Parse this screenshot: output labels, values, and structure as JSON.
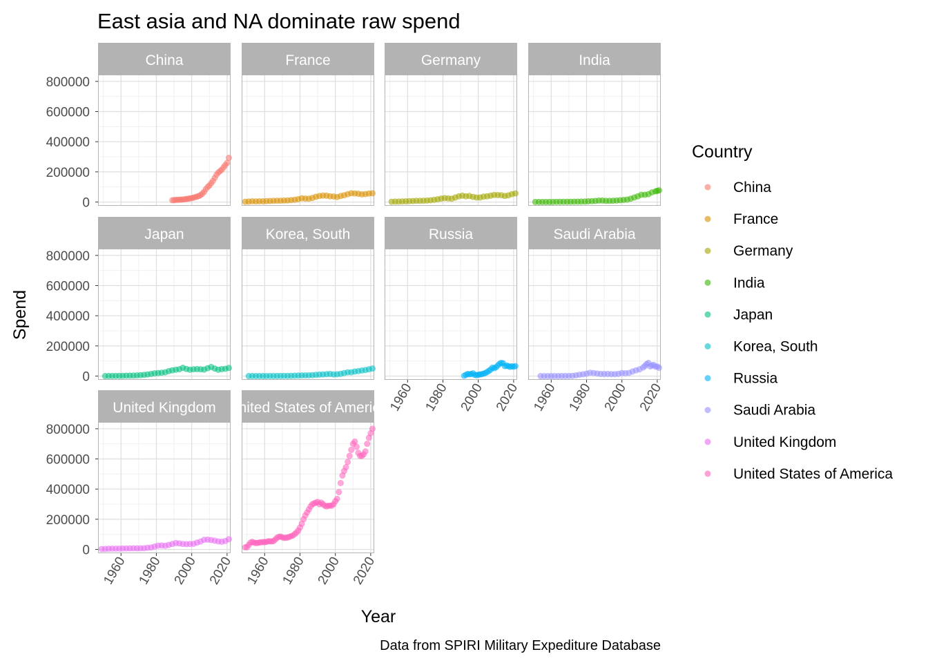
{
  "chart_data": {
    "type": "scatter",
    "title": "East asia and NA dominate raw spend",
    "xlabel": "Year",
    "ylabel": "Spend",
    "caption": "Data from SPIRI Military Expediture Database",
    "legend_title": "Country",
    "legend_position": "right",
    "grid": true,
    "facet": "wrap",
    "facet_columns": 4,
    "xlim": [
      1947,
      2022
    ],
    "ylim": [
      -25000,
      845000
    ],
    "x_ticks": [
      1960,
      1980,
      2000,
      2020
    ],
    "x_tick_labels": [
      "1960",
      "1980",
      "2000",
      "2020"
    ],
    "y_ticks": [
      0,
      200000,
      400000,
      600000,
      800000
    ],
    "y_tick_labels": [
      "0",
      "200000",
      "400000",
      "600000",
      "800000"
    ],
    "series": [
      {
        "name": "China",
        "strip_label": "China",
        "color": "#F8766D",
        "x": [
          1989,
          1990,
          1991,
          1992,
          1993,
          1994,
          1995,
          1996,
          1997,
          1998,
          1999,
          2000,
          2001,
          2002,
          2003,
          2004,
          2005,
          2006,
          2007,
          2008,
          2009,
          2010,
          2011,
          2012,
          2013,
          2014,
          2015,
          2016,
          2017,
          2018,
          2019,
          2020,
          2021
        ],
        "y": [
          12000,
          13000,
          14000,
          15000,
          15000,
          16000,
          17000,
          18000,
          20000,
          22000,
          24000,
          26000,
          29000,
          33000,
          36000,
          40000,
          46000,
          55000,
          68000,
          85000,
          100000,
          110000,
          125000,
          140000,
          160000,
          180000,
          195000,
          205000,
          215000,
          230000,
          245000,
          260000,
          293000
        ]
      },
      {
        "name": "France",
        "strip_label": "France",
        "color": "#D89000",
        "x": [
          1949,
          1951,
          1953,
          1955,
          1957,
          1959,
          1961,
          1963,
          1965,
          1967,
          1969,
          1971,
          1973,
          1975,
          1977,
          1979,
          1981,
          1983,
          1985,
          1987,
          1989,
          1991,
          1993,
          1995,
          1997,
          1999,
          2001,
          2003,
          2005,
          2007,
          2009,
          2011,
          2013,
          2015,
          2017,
          2019,
          2021
        ],
        "y": [
          2000,
          3000,
          5000,
          4000,
          5000,
          5000,
          6000,
          7000,
          8000,
          9000,
          9000,
          10000,
          11000,
          13000,
          15000,
          19000,
          25000,
          23000,
          22000,
          27000,
          35000,
          40000,
          43000,
          42000,
          38000,
          37000,
          33000,
          40000,
          45000,
          52000,
          58000,
          57000,
          55000,
          51000,
          53000,
          56000,
          58000
        ]
      },
      {
        "name": "Germany",
        "strip_label": "Germany",
        "color": "#A3A500",
        "x": [
          1951,
          1953,
          1955,
          1957,
          1959,
          1961,
          1963,
          1965,
          1967,
          1969,
          1971,
          1973,
          1975,
          1977,
          1979,
          1981,
          1983,
          1985,
          1987,
          1989,
          1991,
          1993,
          1995,
          1997,
          1999,
          2001,
          2003,
          2005,
          2007,
          2009,
          2011,
          2013,
          2015,
          2017,
          2019,
          2021
        ],
        "y": [
          2000,
          3000,
          3000,
          4000,
          5000,
          6000,
          7000,
          8000,
          8000,
          9000,
          10000,
          12000,
          15000,
          18000,
          23000,
          26000,
          24000,
          22000,
          30000,
          38000,
          42000,
          38000,
          40000,
          34000,
          30000,
          30000,
          36000,
          38000,
          42000,
          47000,
          46000,
          45000,
          40000,
          44000,
          52000,
          57000
        ]
      },
      {
        "name": "India",
        "strip_label": "India",
        "color": "#39B600",
        "x": [
          1951,
          1953,
          1955,
          1957,
          1959,
          1961,
          1963,
          1965,
          1967,
          1969,
          1971,
          1973,
          1975,
          1977,
          1979,
          1981,
          1983,
          1985,
          1987,
          1989,
          1991,
          1993,
          1995,
          1997,
          1999,
          2001,
          2003,
          2005,
          2007,
          2009,
          2011,
          2013,
          2015,
          2017,
          2019,
          2020,
          2021
        ],
        "y": [
          500,
          500,
          600,
          700,
          700,
          900,
          1500,
          1800,
          1700,
          1800,
          2000,
          2200,
          2600,
          3000,
          3500,
          4800,
          6000,
          7500,
          9500,
          10000,
          8000,
          8000,
          8500,
          10000,
          12000,
          14000,
          16000,
          22000,
          30000,
          38000,
          48000,
          48000,
          52000,
          64000,
          71000,
          74000,
          77000
        ]
      },
      {
        "name": "Japan",
        "strip_label": "Japan",
        "color": "#00BF7D",
        "x": [
          1951,
          1953,
          1955,
          1957,
          1959,
          1961,
          1963,
          1965,
          1967,
          1969,
          1971,
          1973,
          1975,
          1977,
          1979,
          1981,
          1983,
          1985,
          1987,
          1989,
          1991,
          1993,
          1995,
          1997,
          1999,
          2001,
          2003,
          2005,
          2007,
          2009,
          2011,
          2013,
          2015,
          2017,
          2019,
          2021
        ],
        "y": [
          200,
          500,
          1000,
          1200,
          1500,
          1800,
          2500,
          3000,
          3500,
          4500,
          6000,
          8000,
          11000,
          14000,
          18000,
          20000,
          22000,
          25000,
          33000,
          38000,
          42000,
          45000,
          55000,
          47000,
          42000,
          45000,
          46000,
          45000,
          43000,
          52000,
          60000,
          50000,
          42000,
          46000,
          48000,
          54000
        ]
      },
      {
        "name": "Korea, South",
        "strip_label": "Korea, South",
        "color": "#00BFC4",
        "x": [
          1951,
          1953,
          1955,
          1957,
          1959,
          1961,
          1963,
          1965,
          1967,
          1969,
          1971,
          1973,
          1975,
          1977,
          1979,
          1981,
          1983,
          1985,
          1987,
          1989,
          1991,
          1993,
          1995,
          1997,
          1999,
          2001,
          2003,
          2005,
          2007,
          2009,
          2011,
          2013,
          2015,
          2017,
          2019,
          2021
        ],
        "y": [
          100,
          200,
          300,
          300,
          300,
          400,
          500,
          600,
          700,
          900,
          1100,
          1300,
          1800,
          2500,
          3500,
          4200,
          4500,
          5000,
          6000,
          8000,
          10000,
          11000,
          13000,
          14000,
          11000,
          12000,
          15000,
          20000,
          25000,
          25000,
          30000,
          33000,
          37000,
          40000,
          45000,
          50000
        ]
      },
      {
        "name": "Russia",
        "strip_label": "Russia",
        "color": "#00B0F6",
        "x": [
          1992,
          1993,
          1994,
          1995,
          1996,
          1997,
          1998,
          1999,
          2000,
          2001,
          2002,
          2003,
          2004,
          2005,
          2006,
          2007,
          2008,
          2009,
          2010,
          2011,
          2012,
          2013,
          2014,
          2015,
          2016,
          2017,
          2018,
          2019,
          2020,
          2021
        ],
        "y": [
          2000,
          8000,
          14000,
          12000,
          14000,
          18000,
          8000,
          6000,
          9000,
          11000,
          13000,
          16000,
          20000,
          27000,
          35000,
          43000,
          56000,
          52000,
          58000,
          70000,
          81000,
          88000,
          85000,
          66000,
          69000,
          66000,
          61000,
          65000,
          62000,
          66000
        ]
      },
      {
        "name": "Saudi Arabia",
        "strip_label": "Saudi Arabia",
        "color": "#9590FF",
        "x": [
          1954,
          1956,
          1958,
          1960,
          1962,
          1964,
          1966,
          1968,
          1970,
          1972,
          1974,
          1976,
          1978,
          1980,
          1982,
          1984,
          1986,
          1988,
          1990,
          1992,
          1994,
          1996,
          1998,
          2000,
          2002,
          2004,
          2006,
          2008,
          2010,
          2012,
          2013,
          2014,
          2015,
          2016,
          2017,
          2018,
          2019,
          2020,
          2021
        ],
        "y": [
          100,
          100,
          100,
          100,
          100,
          200,
          300,
          500,
          1000,
          1500,
          5000,
          9000,
          12000,
          16000,
          22000,
          20000,
          17000,
          14000,
          14000,
          14000,
          13000,
          13000,
          15000,
          20000,
          19000,
          21000,
          30000,
          38000,
          45000,
          57000,
          67000,
          80000,
          87000,
          64000,
          70000,
          74000,
          62000,
          64000,
          55000
        ]
      },
      {
        "name": "United Kingdom",
        "strip_label": "United Kingdom",
        "color": "#E76BF3",
        "x": [
          1949,
          1951,
          1953,
          1955,
          1957,
          1959,
          1961,
          1963,
          1965,
          1967,
          1969,
          1971,
          1973,
          1975,
          1977,
          1979,
          1981,
          1983,
          1985,
          1987,
          1989,
          1991,
          1993,
          1995,
          1997,
          1999,
          2001,
          2003,
          2005,
          2007,
          2009,
          2011,
          2013,
          2015,
          2017,
          2019,
          2021
        ],
        "y": [
          2500,
          3000,
          4500,
          5000,
          5000,
          5500,
          6000,
          6500,
          7000,
          7500,
          7000,
          7500,
          8000,
          11000,
          13000,
          19000,
          25000,
          26000,
          24000,
          30000,
          36000,
          42000,
          40000,
          36000,
          35000,
          36000,
          37000,
          45000,
          52000,
          64000,
          65000,
          62000,
          58000,
          53000,
          51000,
          56000,
          68000
        ]
      },
      {
        "name": "United States of America",
        "strip_label": "United States of America",
        "color": "#FF62BC",
        "x": [
          1949,
          1950,
          1951,
          1952,
          1953,
          1954,
          1955,
          1956,
          1957,
          1958,
          1959,
          1960,
          1961,
          1962,
          1963,
          1964,
          1965,
          1966,
          1967,
          1968,
          1969,
          1970,
          1971,
          1972,
          1973,
          1974,
          1975,
          1976,
          1977,
          1978,
          1979,
          1980,
          1981,
          1982,
          1983,
          1984,
          1985,
          1986,
          1987,
          1988,
          1989,
          1990,
          1991,
          1992,
          1993,
          1994,
          1995,
          1996,
          1997,
          1998,
          1999,
          2000,
          2001,
          2002,
          2003,
          2004,
          2005,
          2006,
          2007,
          2008,
          2009,
          2010,
          2011,
          2012,
          2013,
          2014,
          2015,
          2016,
          2017,
          2018,
          2019,
          2020,
          2021
        ],
        "y": [
          14000,
          15000,
          30000,
          45000,
          50000,
          45000,
          42000,
          43000,
          46000,
          47000,
          49000,
          48000,
          50000,
          54000,
          54000,
          53000,
          55000,
          66000,
          77000,
          84000,
          85000,
          80000,
          76000,
          78000,
          79000,
          83000,
          88000,
          92000,
          102000,
          112000,
          125000,
          145000,
          170000,
          200000,
          225000,
          245000,
          265000,
          285000,
          300000,
          305000,
          310000,
          315000,
          300000,
          310000,
          300000,
          290000,
          285000,
          290000,
          290000,
          290000,
          300000,
          320000,
          335000,
          380000,
          440000,
          490000,
          520000,
          545000,
          580000,
          620000,
          660000,
          700000,
          715000,
          680000,
          640000,
          620000,
          620000,
          630000,
          650000,
          700000,
          740000,
          770000,
          800000
        ]
      }
    ]
  }
}
